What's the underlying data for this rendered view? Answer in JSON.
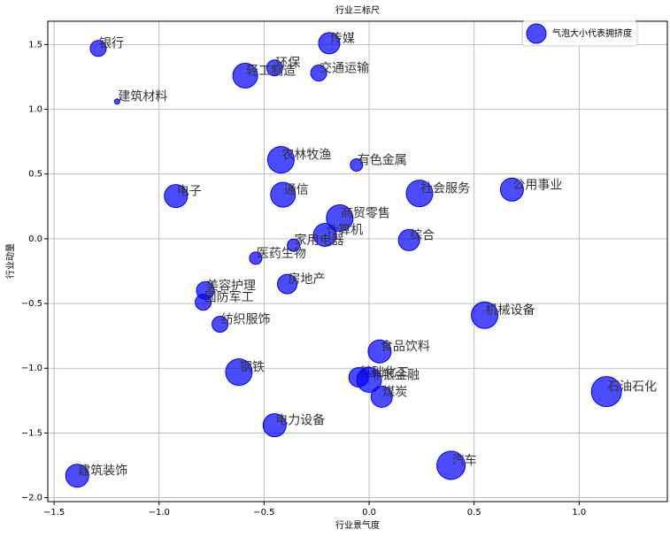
{
  "chart_data": {
    "type": "scatter",
    "title": "行业三标尺",
    "x_label": "行业景气度",
    "y_label": "行业动量",
    "categories": [
      "银行",
      "传媒",
      "环保",
      "轻工制造",
      "交通运输",
      "建筑材料",
      "农林牧渔",
      "有色金属",
      "电子",
      "通信",
      "社会服务",
      "公用事业",
      "商贸零售",
      "计算机",
      "家用电器",
      "综合",
      "医药生物",
      "房地产",
      "美容护理",
      "国防军工",
      "机械设备",
      "纺织服饰",
      "食品饮料",
      "钢铁",
      "基础化工",
      "非银金融",
      "煤炭",
      "石油石化",
      "电力设备",
      "汽车",
      "建筑装饰"
    ],
    "series": [
      {
        "name": "气泡大小代表拥挤度",
        "color": "#0000ff",
        "x": [
          -1.29,
          -0.19,
          -0.45,
          -0.59,
          -0.24,
          -1.2,
          -0.42,
          -0.06,
          -0.92,
          -0.41,
          0.24,
          0.68,
          -0.14,
          -0.21,
          -0.36,
          0.19,
          -0.54,
          -0.39,
          -0.78,
          -0.79,
          0.55,
          -0.71,
          0.05,
          -0.62,
          -0.05,
          0.0,
          0.06,
          1.13,
          -0.45,
          0.39,
          -1.39
        ],
        "values": [
          1.47,
          1.51,
          1.32,
          1.26,
          1.28,
          1.06,
          0.61,
          0.57,
          0.33,
          0.34,
          0.35,
          0.38,
          0.16,
          0.03,
          -0.05,
          -0.01,
          -0.15,
          -0.35,
          -0.4,
          -0.49,
          -0.59,
          -0.66,
          -0.87,
          -1.03,
          -1.07,
          -1.09,
          -1.22,
          -1.18,
          -1.44,
          -1.75,
          -1.83
        ],
        "sizes": [
          81,
          144,
          81,
          196,
          81,
          9,
          225,
          49,
          169,
          196,
          225,
          169,
          225,
          169,
          49,
          144,
          49,
          121,
          100,
          81,
          225,
          81,
          169,
          225,
          121,
          196,
          144,
          289,
          169,
          256,
          169
        ]
      }
    ],
    "xlim": [
      -1.53,
      1.42
    ],
    "ylim": [
      -2.03,
      1.68
    ],
    "xticks": [
      {
        "value": -1.5,
        "label": "−1.5"
      },
      {
        "value": -1.0,
        "label": "−1.0"
      },
      {
        "value": -0.5,
        "label": "−0.5"
      },
      {
        "value": 0,
        "label": "0.0"
      },
      0.5,
      {
        "value": 1.0,
        "label": "1.0"
      }
    ],
    "yticks": [
      {
        "value": -2.0,
        "label": "−2.0"
      },
      {
        "value": -1.5,
        "label": "−1.5"
      },
      {
        "value": -1.0,
        "label": "−1.0"
      },
      {
        "value": -0.5,
        "label": "−0.5"
      },
      {
        "value": 0,
        "label": "0.0"
      },
      0.5,
      {
        "value": 1.0,
        "label": "1.0"
      },
      1.5
    ],
    "grid": true,
    "legend": "upper right"
  }
}
